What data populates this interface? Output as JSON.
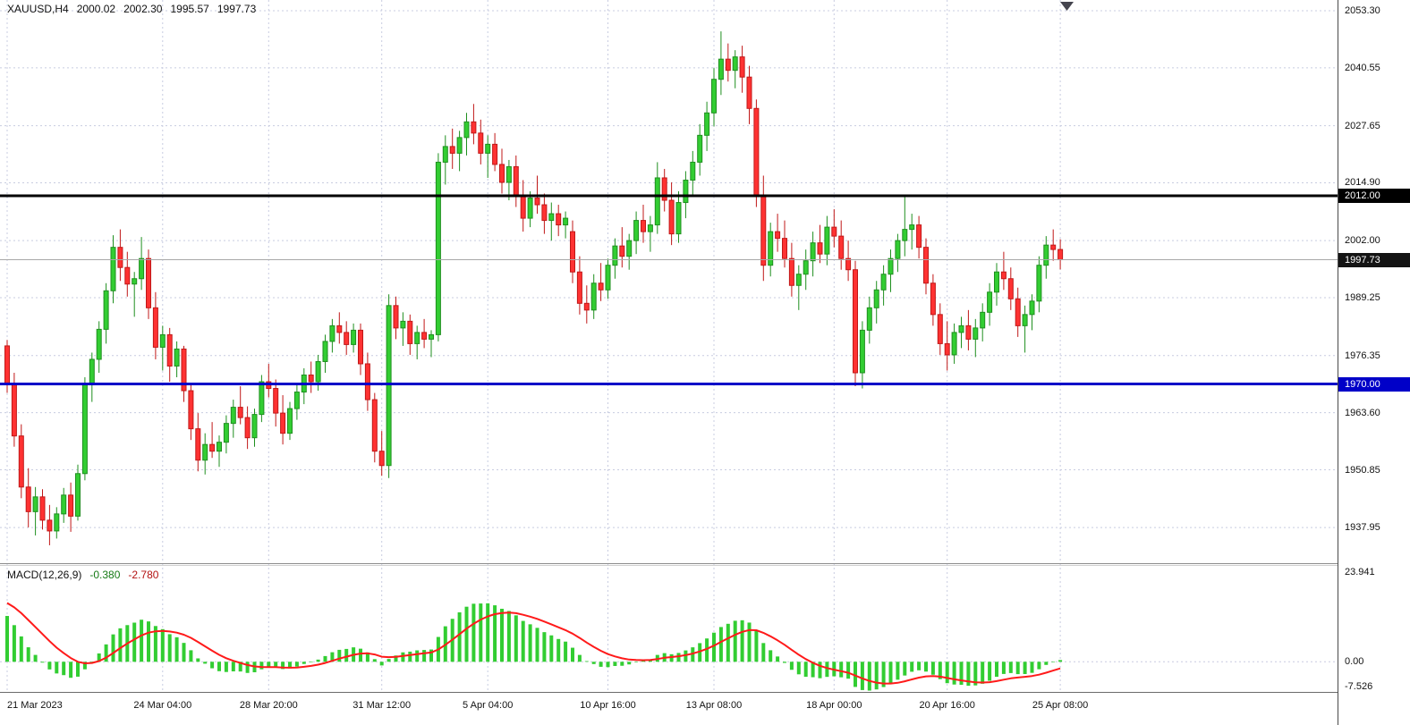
{
  "header": {
    "symbol": "XAUUSD,H4",
    "open": "2000.02",
    "high": "2002.30",
    "low": "1995.57",
    "close": "1997.73"
  },
  "macd_header": {
    "name": "MACD(12,26,9)",
    "main": "-0.380",
    "signal": "-2.780"
  },
  "chart_data": {
    "type": "candlestick",
    "symbol": "XAUUSD",
    "timeframe": "H4",
    "price_axis": {
      "ticks": [
        "2053.30",
        "2040.55",
        "2027.65",
        "2014.90",
        "2002.00",
        "1989.25",
        "1976.35",
        "1963.60",
        "1950.85",
        "1937.95"
      ],
      "values": [
        2053.3,
        2040.55,
        2027.65,
        2014.9,
        2002.0,
        1989.25,
        1976.35,
        1963.6,
        1950.85,
        1937.95
      ],
      "render_max": 2055.7,
      "render_min": 1930.0
    },
    "time_axis": {
      "labels": [
        "21 Mar 2023",
        "24 Mar 04:00",
        "28 Mar 20:00",
        "31 Mar 12:00",
        "5 Apr 04:00",
        "10 Apr 16:00",
        "13 Apr 08:00",
        "18 Apr 00:00",
        "20 Apr 16:00",
        "25 Apr 08:00"
      ],
      "indices": [
        0,
        22,
        37,
        53,
        68,
        85,
        100,
        117,
        133,
        149
      ]
    },
    "hlines": [
      {
        "price": 2012.0,
        "label": "2012.00",
        "color": "#000000",
        "badge_bg": "#000000",
        "width": 3
      },
      {
        "price": 1970.0,
        "label": "1970.00",
        "color": "#0000c8",
        "badge_bg": "#0000c8",
        "width": 3
      }
    ],
    "price_line": {
      "price": 1997.73,
      "label": "1997.73",
      "line_color": "#a8a8a8",
      "badge_bg": "#141414"
    },
    "colors": {
      "up": "#32cd32",
      "up_stroke": "#1f8f1f",
      "down": "#ff3232",
      "down_stroke": "#c01818",
      "grid": "#c8cce0",
      "bg": "#ffffff"
    },
    "candles": [
      [
        1978.5,
        1979.8,
        1968.0,
        1970.2
      ],
      [
        1970.2,
        1972.5,
        1956.0,
        1958.4
      ],
      [
        1958.4,
        1961.0,
        1944.5,
        1947.0
      ],
      [
        1947.0,
        1951.2,
        1938.0,
        1941.5
      ],
      [
        1941.5,
        1947.0,
        1936.2,
        1944.8
      ],
      [
        1944.8,
        1946.5,
        1937.5,
        1939.6
      ],
      [
        1939.6,
        1943.0,
        1934.0,
        1937.2
      ],
      [
        1937.2,
        1942.5,
        1935.5,
        1941.0
      ],
      [
        1941.0,
        1946.8,
        1939.0,
        1945.2
      ],
      [
        1945.2,
        1948.0,
        1937.0,
        1940.5
      ],
      [
        1940.5,
        1952.0,
        1939.5,
        1950.0
      ],
      [
        1950.0,
        1971.5,
        1948.5,
        1969.8
      ],
      [
        1969.8,
        1977.0,
        1966.0,
        1975.5
      ],
      [
        1975.5,
        1984.0,
        1972.5,
        1982.2
      ],
      [
        1982.2,
        1992.5,
        1979.0,
        1990.8
      ],
      [
        1990.8,
        2003.2,
        1988.0,
        2000.5
      ],
      [
        2000.5,
        2004.5,
        1993.0,
        1996.0
      ],
      [
        1996.0,
        1999.5,
        1989.5,
        1992.3
      ],
      [
        1992.3,
        1995.0,
        1985.0,
        1993.5
      ],
      [
        1993.5,
        2002.8,
        1991.0,
        1998.0
      ],
      [
        1998.0,
        2000.0,
        1984.5,
        1987.0
      ],
      [
        1987.0,
        1990.5,
        1975.5,
        1978.2
      ],
      [
        1978.2,
        1983.0,
        1973.0,
        1981.0
      ],
      [
        1981.0,
        1982.5,
        1970.5,
        1974.0
      ],
      [
        1974.0,
        1979.5,
        1971.5,
        1977.8
      ],
      [
        1977.8,
        1978.5,
        1966.0,
        1968.5
      ],
      [
        1968.5,
        1970.0,
        1957.5,
        1960.0
      ],
      [
        1960.0,
        1963.5,
        1950.5,
        1953.0
      ],
      [
        1953.0,
        1959.0,
        1949.8,
        1956.5
      ],
      [
        1956.5,
        1961.5,
        1953.5,
        1955.0
      ],
      [
        1955.0,
        1958.5,
        1951.5,
        1957.0
      ],
      [
        1957.0,
        1963.0,
        1954.5,
        1961.2
      ],
      [
        1961.2,
        1966.5,
        1958.0,
        1964.8
      ],
      [
        1964.8,
        1969.5,
        1961.0,
        1962.5
      ],
      [
        1962.5,
        1965.0,
        1955.5,
        1958.0
      ],
      [
        1958.0,
        1964.5,
        1956.0,
        1963.2
      ],
      [
        1963.2,
        1972.0,
        1961.5,
        1970.5
      ],
      [
        1970.5,
        1974.5,
        1967.0,
        1969.0
      ],
      [
        1969.0,
        1971.0,
        1960.5,
        1963.5
      ],
      [
        1963.5,
        1967.5,
        1956.5,
        1959.0
      ],
      [
        1959.0,
        1966.0,
        1957.5,
        1964.5
      ],
      [
        1964.5,
        1970.0,
        1962.0,
        1968.2
      ],
      [
        1968.2,
        1973.5,
        1965.5,
        1972.0
      ],
      [
        1972.0,
        1975.0,
        1968.0,
        1970.5
      ],
      [
        1970.5,
        1976.5,
        1968.5,
        1975.0
      ],
      [
        1975.0,
        1981.0,
        1972.5,
        1979.5
      ],
      [
        1979.5,
        1984.5,
        1977.0,
        1983.0
      ],
      [
        1983.0,
        1986.0,
        1979.0,
        1981.5
      ],
      [
        1981.5,
        1984.0,
        1976.5,
        1978.8
      ],
      [
        1978.8,
        1983.5,
        1977.0,
        1982.0
      ],
      [
        1982.0,
        1983.5,
        1972.0,
        1974.5
      ],
      [
        1974.5,
        1977.0,
        1964.0,
        1966.5
      ],
      [
        1966.5,
        1968.0,
        1952.5,
        1955.0
      ],
      [
        1955.0,
        1959.5,
        1949.5,
        1951.8
      ],
      [
        1951.8,
        1990.0,
        1949.0,
        1987.5
      ],
      [
        1987.5,
        1989.5,
        1980.0,
        1982.5
      ],
      [
        1982.5,
        1986.0,
        1978.5,
        1984.0
      ],
      [
        1984.0,
        1985.5,
        1976.5,
        1979.0
      ],
      [
        1979.0,
        1983.0,
        1975.5,
        1981.5
      ],
      [
        1981.5,
        1984.5,
        1978.0,
        1980.0
      ],
      [
        1980.0,
        1982.0,
        1976.0,
        1981.0
      ],
      [
        1981.0,
        2021.5,
        1979.5,
        2019.5
      ],
      [
        2019.5,
        2025.5,
        2014.5,
        2023.0
      ],
      [
        2023.0,
        2027.0,
        2018.0,
        2021.5
      ],
      [
        2021.5,
        2026.5,
        2017.5,
        2025.0
      ],
      [
        2025.0,
        2030.5,
        2021.0,
        2028.5
      ],
      [
        2028.5,
        2032.5,
        2023.5,
        2026.0
      ],
      [
        2026.0,
        2029.0,
        2019.0,
        2021.5
      ],
      [
        2021.5,
        2025.5,
        2016.0,
        2023.5
      ],
      [
        2023.5,
        2026.0,
        2017.5,
        2019.0
      ],
      [
        2019.0,
        2022.5,
        2012.5,
        2015.0
      ],
      [
        2015.0,
        2020.0,
        2011.0,
        2018.5
      ],
      [
        2018.5,
        2021.0,
        2009.5,
        2012.0
      ],
      [
        2012.0,
        2015.5,
        2004.0,
        2007.0
      ],
      [
        2007.0,
        2013.0,
        2005.0,
        2011.5
      ],
      [
        2011.5,
        2016.5,
        2008.0,
        2010.0
      ],
      [
        2010.0,
        2012.5,
        2003.5,
        2006.5
      ],
      [
        2006.5,
        2010.5,
        2002.0,
        2008.0
      ],
      [
        2008.0,
        2010.0,
        2003.0,
        2005.5
      ],
      [
        2005.5,
        2008.5,
        2002.5,
        2007.0
      ],
      [
        2004.0,
        2006.5,
        1992.5,
        1995.0
      ],
      [
        1995.0,
        1998.5,
        1985.5,
        1988.0
      ],
      [
        1988.0,
        1992.0,
        1983.5,
        1986.5
      ],
      [
        1986.5,
        1994.5,
        1984.5,
        1992.5
      ],
      [
        1992.5,
        1997.0,
        1988.5,
        1991.0
      ],
      [
        1991.0,
        1998.0,
        1989.0,
        1996.5
      ],
      [
        1996.5,
        2002.5,
        1993.5,
        2000.8
      ],
      [
        2000.8,
        2005.0,
        1996.0,
        1998.5
      ],
      [
        1998.5,
        2003.5,
        1995.5,
        2002.0
      ],
      [
        2002.0,
        2008.5,
        1999.0,
        2006.5
      ],
      [
        2006.5,
        2010.0,
        2001.5,
        2004.0
      ],
      [
        2004.0,
        2007.5,
        1999.5,
        2005.5
      ],
      [
        2005.5,
        2019.5,
        2003.5,
        2016.0
      ],
      [
        2016.0,
        2018.0,
        2008.5,
        2011.0
      ],
      [
        2011.0,
        2015.0,
        2001.0,
        2003.5
      ],
      [
        2003.5,
        2013.0,
        2001.5,
        2010.5
      ],
      [
        2010.5,
        2017.5,
        2007.0,
        2015.5
      ],
      [
        2015.5,
        2022.0,
        2012.0,
        2019.5
      ],
      [
        2019.5,
        2028.0,
        2016.5,
        2025.5
      ],
      [
        2025.5,
        2033.0,
        2022.0,
        2030.5
      ],
      [
        2030.5,
        2040.5,
        2027.5,
        2038.0
      ],
      [
        2038.0,
        2048.7,
        2034.5,
        2042.5
      ],
      [
        2042.5,
        2046.0,
        2037.5,
        2040.0
      ],
      [
        2040.0,
        2044.5,
        2036.0,
        2043.0
      ],
      [
        2043.0,
        2045.5,
        2035.0,
        2038.5
      ],
      [
        2038.5,
        2041.0,
        2028.0,
        2031.5
      ],
      [
        2031.5,
        2033.5,
        2009.5,
        2012.0
      ],
      [
        2012.0,
        2016.5,
        1993.0,
        1996.5
      ],
      [
        1996.5,
        2006.0,
        1994.0,
        2004.0
      ],
      [
        2004.0,
        2008.0,
        1999.5,
        2002.5
      ],
      [
        2002.5,
        2006.5,
        1996.0,
        1998.0
      ],
      [
        1998.0,
        2001.5,
        1989.5,
        1992.0
      ],
      [
        1992.0,
        1996.5,
        1986.5,
        1994.5
      ],
      [
        1994.5,
        2000.0,
        1991.0,
        1997.5
      ],
      [
        1997.5,
        2004.0,
        1994.0,
        2001.5
      ],
      [
        2001.5,
        2005.5,
        1997.0,
        1999.0
      ],
      [
        1999.0,
        2007.5,
        1996.5,
        2005.0
      ],
      [
        2005.0,
        2009.0,
        2000.5,
        2003.0
      ],
      [
        2003.0,
        2006.5,
        1995.5,
        1998.0
      ],
      [
        1998.0,
        2002.0,
        1993.0,
        1995.5
      ],
      [
        1995.5,
        1997.5,
        1969.5,
        1972.5
      ],
      [
        1972.5,
        1984.0,
        1969.0,
        1982.0
      ],
      [
        1982.0,
        1989.5,
        1979.0,
        1987.0
      ],
      [
        1987.0,
        1993.0,
        1983.5,
        1991.0
      ],
      [
        1991.0,
        1996.5,
        1987.5,
        1994.5
      ],
      [
        1994.5,
        2000.0,
        1990.5,
        1998.0
      ],
      [
        1998.0,
        2003.5,
        1995.0,
        2002.0
      ],
      [
        2002.0,
        2012.0,
        1998.5,
        2004.5
      ],
      [
        2004.5,
        2008.0,
        2000.0,
        2005.5
      ],
      [
        2005.5,
        2007.5,
        1998.0,
        2000.5
      ],
      [
        2000.5,
        2002.5,
        1990.0,
        1992.5
      ],
      [
        1992.5,
        1994.5,
        1983.0,
        1985.5
      ],
      [
        1985.5,
        1988.0,
        1976.5,
        1979.0
      ],
      [
        1979.0,
        1984.0,
        1973.0,
        1976.5
      ],
      [
        1976.5,
        1983.5,
        1974.5,
        1981.5
      ],
      [
        1981.5,
        1985.0,
        1978.0,
        1983.0
      ],
      [
        1983.0,
        1986.5,
        1977.5,
        1980.0
      ],
      [
        1980.0,
        1984.5,
        1976.0,
        1982.5
      ],
      [
        1982.5,
        1988.0,
        1979.5,
        1986.0
      ],
      [
        1986.0,
        1992.5,
        1983.0,
        1990.5
      ],
      [
        1990.5,
        1997.0,
        1987.5,
        1995.0
      ],
      [
        1995.0,
        1999.5,
        1991.0,
        1993.5
      ],
      [
        1993.5,
        1996.0,
        1986.5,
        1989.0
      ],
      [
        1989.0,
        1991.5,
        1980.5,
        1983.0
      ],
      [
        1983.0,
        1987.5,
        1977.0,
        1985.5
      ],
      [
        1985.5,
        1990.0,
        1982.0,
        1988.5
      ],
      [
        1988.5,
        1998.5,
        1986.0,
        1996.5
      ],
      [
        1996.5,
        2003.0,
        1993.5,
        2001.0
      ],
      [
        2001.0,
        2004.5,
        1997.5,
        2000.02
      ],
      [
        2000.02,
        2002.3,
        1995.57,
        1997.73
      ]
    ],
    "macd": {
      "label": "MACD(12,26,9)",
      "fast": 12,
      "slow": 26,
      "signal": 9,
      "main_value": "-0.380",
      "signal_value": "-2.780",
      "axis_ticks": [
        "23.941",
        "0.00",
        "-7.526"
      ],
      "axis_values": [
        23.941,
        0.0,
        -7.526
      ],
      "range": [
        -7.526,
        23.941
      ],
      "hist_color": "#32cd32",
      "signal_color": "#ff1a1a",
      "seed": {
        "ema12_offset": 7.5,
        "ema26_offset": -5.5,
        "signal_seed": 15.5
      }
    }
  }
}
